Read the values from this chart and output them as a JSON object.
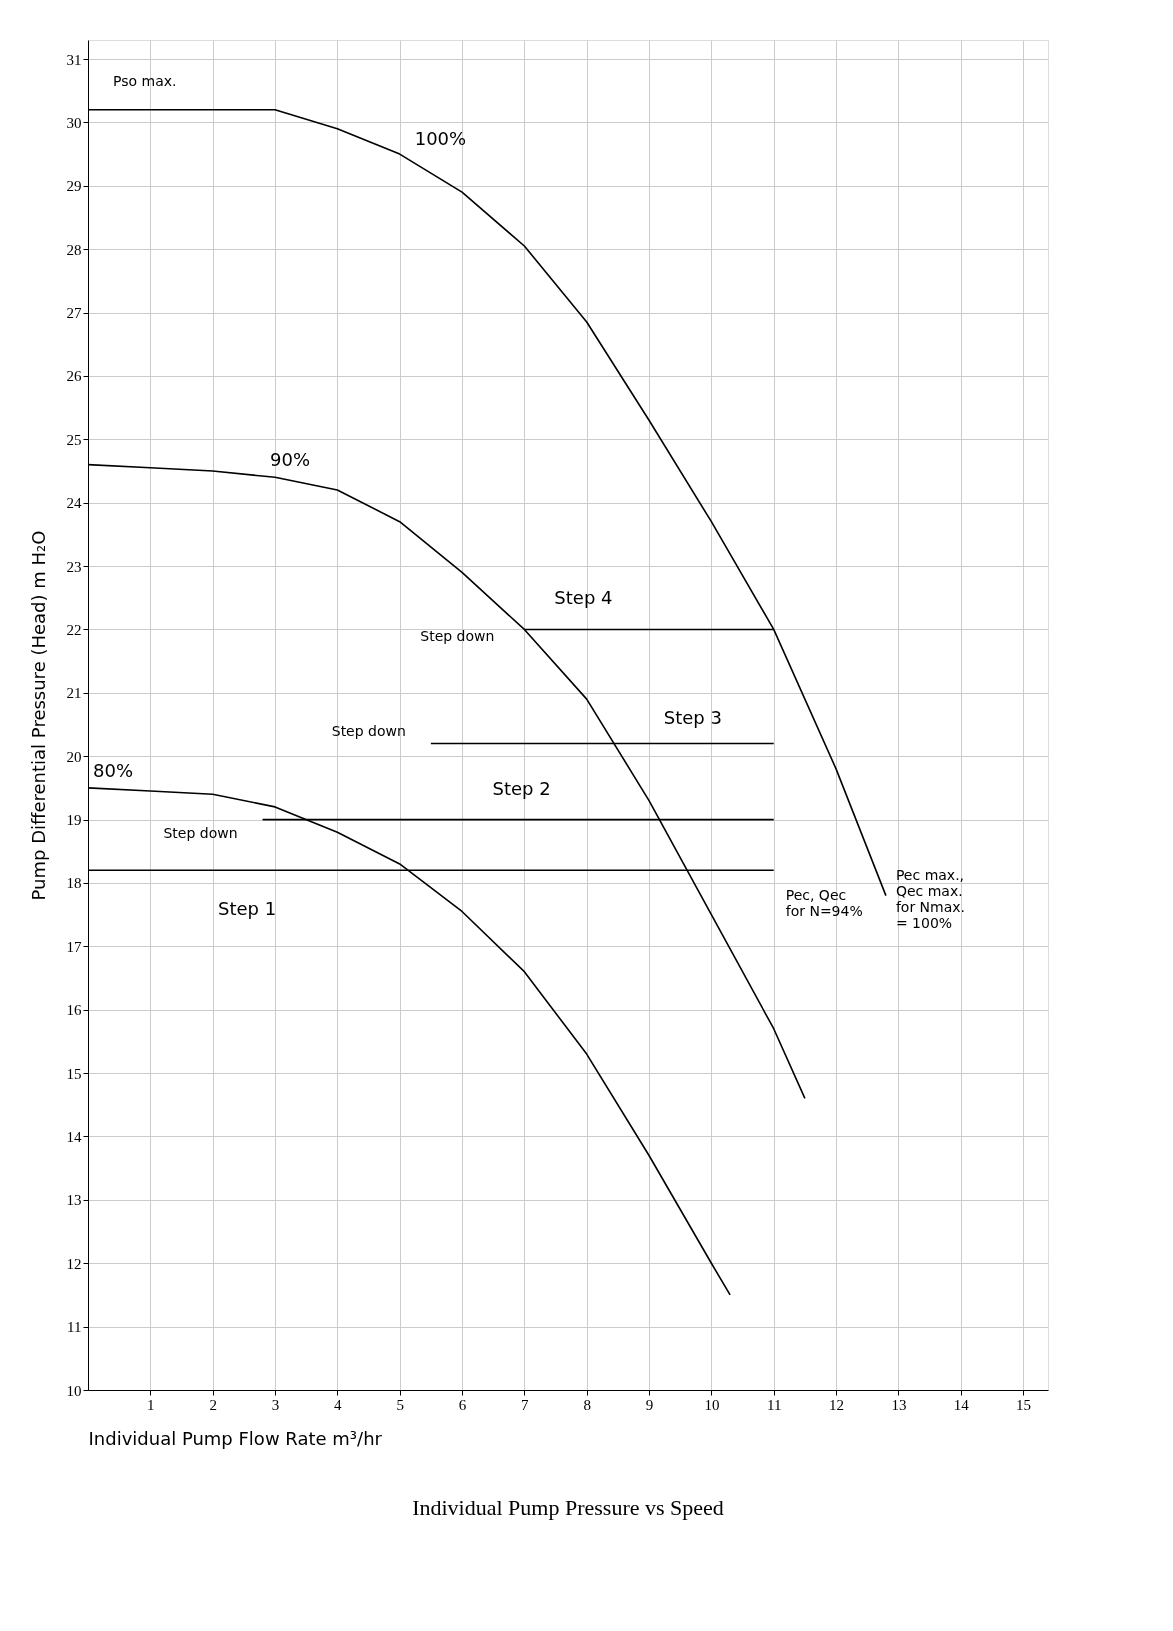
{
  "chart_data": {
    "type": "line",
    "title": "Individual Pump Pressure vs Speed",
    "xlabel": "Individual Pump Flow Rate m³/hr",
    "ylabel": "Pump Differential Pressure (Head) m H₂O",
    "xlim": [
      0,
      15.4
    ],
    "xticks": [
      1,
      2,
      3,
      4,
      5,
      6,
      7,
      8,
      9,
      10,
      11,
      12,
      13,
      14,
      15
    ],
    "ylim": [
      10,
      31.3
    ],
    "yticks": [
      10,
      11,
      12,
      13,
      14,
      15,
      16,
      17,
      18,
      19,
      20,
      21,
      22,
      23,
      24,
      25,
      26,
      27,
      28,
      29,
      30,
      31
    ],
    "grid": true,
    "marker": "none",
    "line_style": "solid",
    "series": [
      {
        "name": "100%",
        "color": "#000000",
        "x": [
          0,
          3,
          4,
          5,
          6,
          7,
          8,
          9,
          10,
          11,
          12,
          12.8
        ],
        "values": [
          30.2,
          30.2,
          29.9,
          29.5,
          28.9,
          28.05,
          26.85,
          25.3,
          23.7,
          22.0,
          19.8,
          17.8
        ]
      },
      {
        "name": "90%",
        "color": "#000000",
        "x": [
          0,
          1,
          2,
          3,
          4,
          5,
          6,
          7,
          8,
          9,
          10,
          11,
          11.5
        ],
        "values": [
          24.6,
          24.55,
          24.5,
          24.4,
          24.2,
          23.7,
          22.9,
          22.0,
          20.9,
          19.3,
          17.5,
          15.7,
          14.6
        ]
      },
      {
        "name": "80%",
        "color": "#000000",
        "x": [
          0,
          1,
          2,
          3,
          4,
          5,
          6,
          7,
          8,
          9,
          10,
          10.3
        ],
        "values": [
          19.5,
          19.45,
          19.4,
          19.2,
          18.8,
          18.3,
          17.55,
          16.6,
          15.3,
          13.7,
          12.0,
          11.5
        ]
      },
      {
        "name": "Step 4",
        "color": "#000000",
        "x": [
          7,
          11
        ],
        "values": [
          22.0,
          22.0
        ]
      },
      {
        "name": "Step 3",
        "color": "#000000",
        "x": [
          5.5,
          11
        ],
        "values": [
          20.2,
          20.2
        ]
      },
      {
        "name": "Step 2",
        "color": "#000000",
        "x": [
          2.8,
          11
        ],
        "values": [
          19.0,
          19.0
        ]
      },
      {
        "name": "Step 1",
        "color": "#000000",
        "x": [
          0,
          11
        ],
        "values": [
          18.2,
          18.2
        ]
      }
    ],
    "annotations": [
      {
        "text": "Pso max.",
        "x": 0,
        "y": 30.2
      },
      {
        "text": "Step down",
        "x": 7,
        "y": 22.0
      },
      {
        "text": "Step down",
        "x": 5.5,
        "y": 20.2
      },
      {
        "text": "Step down",
        "x": 2.8,
        "y": 19.0
      },
      {
        "text": "Pec, Qec\nfor N=94%",
        "x": 11,
        "y": 18.2
      },
      {
        "text": "Pec max.,\nQec max.\nfor Nmax.\n= 100%",
        "x": 12.8,
        "y": 17.8
      }
    ]
  }
}
